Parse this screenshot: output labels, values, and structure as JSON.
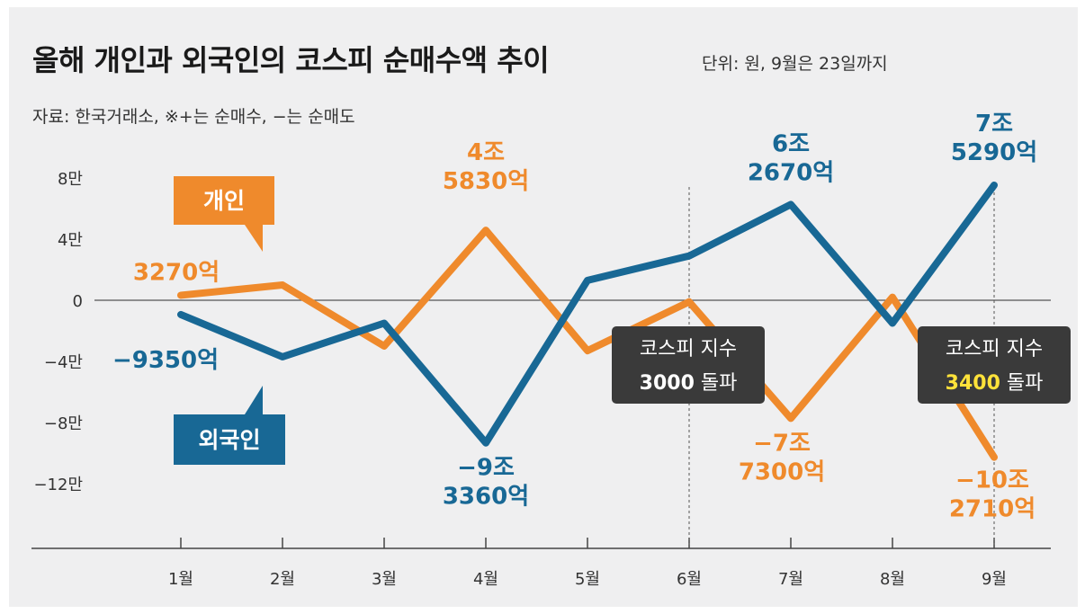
{
  "title": "올해 개인과 외국인의 코스피 순매수액 추이",
  "unit_note": "단위: 원, 9월은 23일까지",
  "source_note": "자료: 한국거래소, ※+는 순매수, −는 순매도",
  "colors": {
    "individual": "#ef8a2c",
    "foreign": "#186895",
    "note_box": "#3a3a3a",
    "highlight": "#ffe23a"
  },
  "chart_data": {
    "type": "line",
    "x": [
      "1월",
      "2월",
      "3월",
      "4월",
      "5월",
      "6월",
      "7월",
      "8월",
      "9월"
    ],
    "y_ticks": [
      "8만",
      "4만",
      "0",
      "−4만",
      "−8만",
      "−12만"
    ],
    "y_tick_values": [
      80000,
      40000,
      0,
      -40000,
      -80000,
      -120000
    ],
    "ylim": [
      -160000,
      82000
    ],
    "grid": false,
    "series": [
      {
        "name": "개인",
        "color": "#ef8a2c",
        "values": [
          3270,
          10000,
          -30000,
          45830,
          -33000,
          -1000,
          -77300,
          2000,
          -102710
        ]
      },
      {
        "name": "외국인",
        "color": "#186895",
        "values": [
          -9350,
          -37000,
          -15000,
          -93360,
          13000,
          29000,
          62670,
          -15000,
          75290
        ]
      }
    ],
    "value_labels": [
      {
        "series": 0,
        "index": 0,
        "lines": [
          "3270억"
        ]
      },
      {
        "series": 0,
        "index": 3,
        "lines": [
          "4조",
          "5830억"
        ]
      },
      {
        "series": 0,
        "index": 6,
        "lines": [
          "−7조",
          "7300억"
        ]
      },
      {
        "series": 0,
        "index": 8,
        "lines": [
          "−10조",
          "2710억"
        ]
      },
      {
        "series": 1,
        "index": 0,
        "lines": [
          "−9350억"
        ]
      },
      {
        "series": 1,
        "index": 3,
        "lines": [
          "−9조",
          "3360억"
        ]
      },
      {
        "series": 1,
        "index": 6,
        "lines": [
          "6조",
          "2670억"
        ]
      },
      {
        "series": 1,
        "index": 8,
        "lines": [
          "7조",
          "5290억"
        ]
      }
    ],
    "annotations": [
      {
        "index": 5,
        "line1": "코스피 지수",
        "number": "3000",
        "suffix": " 돌파",
        "number_color": "#ffffff"
      },
      {
        "index": 8,
        "line1": "코스피 지수",
        "number": "3400",
        "suffix": " 돌파",
        "number_color": "#ffe23a"
      }
    ]
  }
}
